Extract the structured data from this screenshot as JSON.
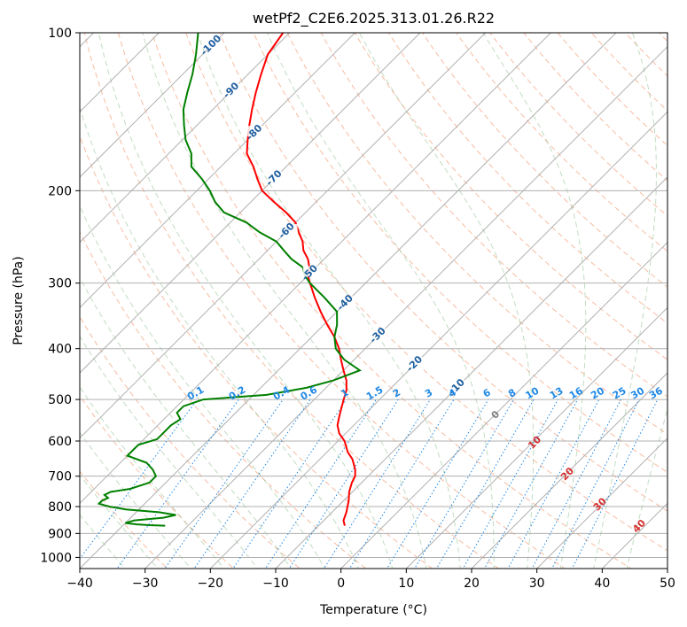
{
  "chart_data": {
    "type": "line",
    "subtype": "skew-T log-P diagram",
    "title": "wetPf2_C2E6.2025.313.01.26.R22",
    "xlabel": "Temperature (°C)",
    "ylabel": "Pressure (hPa)",
    "xlim": [
      -40,
      50
    ],
    "ylim": [
      1050,
      100
    ],
    "x_ticks": [
      -40,
      -30,
      -20,
      -10,
      0,
      10,
      20,
      30,
      40,
      50
    ],
    "y_ticks": [
      100,
      200,
      300,
      400,
      500,
      600,
      700,
      800,
      900,
      1000
    ],
    "grid": true,
    "series": [
      {
        "name": "temperature",
        "color": "#ff0000",
        "p": [
          870,
          850,
          820,
          800,
          780,
          750,
          720,
          700,
          680,
          650,
          630,
          600,
          580,
          560,
          540,
          520,
          500,
          480,
          460,
          440,
          420,
          400,
          380,
          360,
          340,
          320,
          300,
          290,
          280,
          270,
          260,
          250,
          240,
          230,
          220,
          210,
          200,
          190,
          180,
          170,
          160,
          150,
          140,
          130,
          120,
          110,
          100
        ],
        "t": [
          -6,
          -7,
          -7.8,
          -8.5,
          -9.2,
          -10.5,
          -11.5,
          -12,
          -13,
          -15,
          -16.8,
          -19,
          -21,
          -22.5,
          -23.5,
          -24.5,
          -25.5,
          -26.5,
          -28,
          -30,
          -32,
          -34,
          -36.5,
          -39.5,
          -42.5,
          -45.5,
          -48.5,
          -50,
          -51,
          -52.5,
          -54.5,
          -56,
          -58,
          -60,
          -63,
          -66.5,
          -70,
          -72.5,
          -75,
          -78,
          -80,
          -82,
          -84,
          -86,
          -88,
          -90,
          -91
        ]
      },
      {
        "name": "dewpoint",
        "color": "#008000",
        "p": [
          870,
          868,
          865,
          860,
          850,
          845,
          840,
          830,
          820,
          810,
          800,
          790,
          780,
          770,
          760,
          750,
          740,
          720,
          700,
          680,
          660,
          640,
          625,
          610,
          595,
          580,
          560,
          545,
          530,
          515,
          500,
          490,
          475,
          460,
          440,
          420,
          400,
          380,
          360,
          340,
          320,
          300,
          290,
          280,
          270,
          260,
          250,
          240,
          230,
          220,
          210,
          200,
          190,
          180,
          170,
          160,
          150,
          140,
          130,
          120,
          110,
          100
        ],
        "t": [
          -33.5,
          -36,
          -38,
          -40,
          -39,
          -37,
          -35,
          -33.5,
          -36.5,
          -42,
          -45,
          -47,
          -47,
          -46.5,
          -47.5,
          -47,
          -44.5,
          -42.5,
          -42.5,
          -44,
          -46,
          -50,
          -50,
          -50,
          -48,
          -48,
          -48,
          -47.5,
          -49,
          -49,
          -47,
          -38,
          -33,
          -30,
          -27.5,
          -31.5,
          -34.5,
          -36.5,
          -38,
          -40,
          -44,
          -48.5,
          -50.5,
          -52,
          -55,
          -57.5,
          -60,
          -64,
          -67.5,
          -72.5,
          -75.5,
          -78,
          -81,
          -84.5,
          -86.5,
          -89.5,
          -92,
          -94.5,
          -96.5,
          -98.5,
          -101,
          -104
        ]
      }
    ],
    "isotherm_labels": [
      "-100",
      "-90",
      "-80",
      "-70",
      "-60",
      "-50",
      "-40",
      "-30",
      "-20",
      "-10"
    ],
    "mixing_ratio_labels": [
      "0.1",
      "0.2",
      "0.4",
      "0.6",
      "1",
      "1.5",
      "2",
      "3",
      "4",
      "6",
      "8",
      "10",
      "13",
      "16",
      "20",
      "25",
      "30",
      "36"
    ],
    "theta_e_labels": [
      "0",
      "10",
      "20",
      "30",
      "40"
    ]
  },
  "colors": {
    "temperature": "#ff0000",
    "dewpoint": "#008000",
    "grid": "#b0b0b0",
    "dry_adiabat": "#f4a582",
    "moist_adiabat": "#8fbf8f",
    "mixing_ratio": "#1e88e5",
    "isotherm_label": "#1f5fa0",
    "theta_label": "#d32f2f"
  }
}
